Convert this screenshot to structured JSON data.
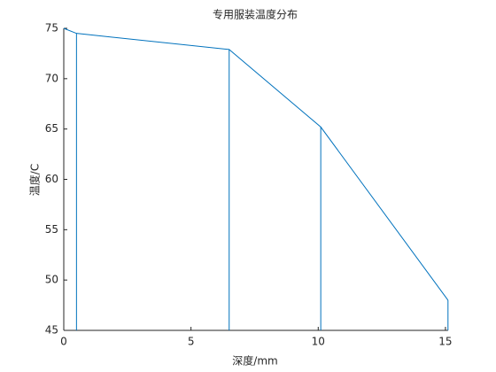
{
  "chart_data": {
    "type": "line",
    "title": "专用服装温度分布",
    "x_label": "深度/mm",
    "y_label": "温度/C",
    "x": [
      0,
      0.5,
      6.5,
      10.1,
      15.1
    ],
    "series": [
      {
        "color": "#0072bd",
        "values": [
          75,
          74.5,
          72.9,
          65.2,
          48.0
        ]
      }
    ],
    "drop_lines": [
      1,
      2,
      3,
      4
    ],
    "xlim": [
      0,
      15.1
    ],
    "xticks": [
      0,
      5,
      10,
      15
    ],
    "ylim": [
      45,
      75
    ],
    "yticks": [
      45,
      50,
      55,
      60,
      65,
      70,
      75
    ]
  }
}
